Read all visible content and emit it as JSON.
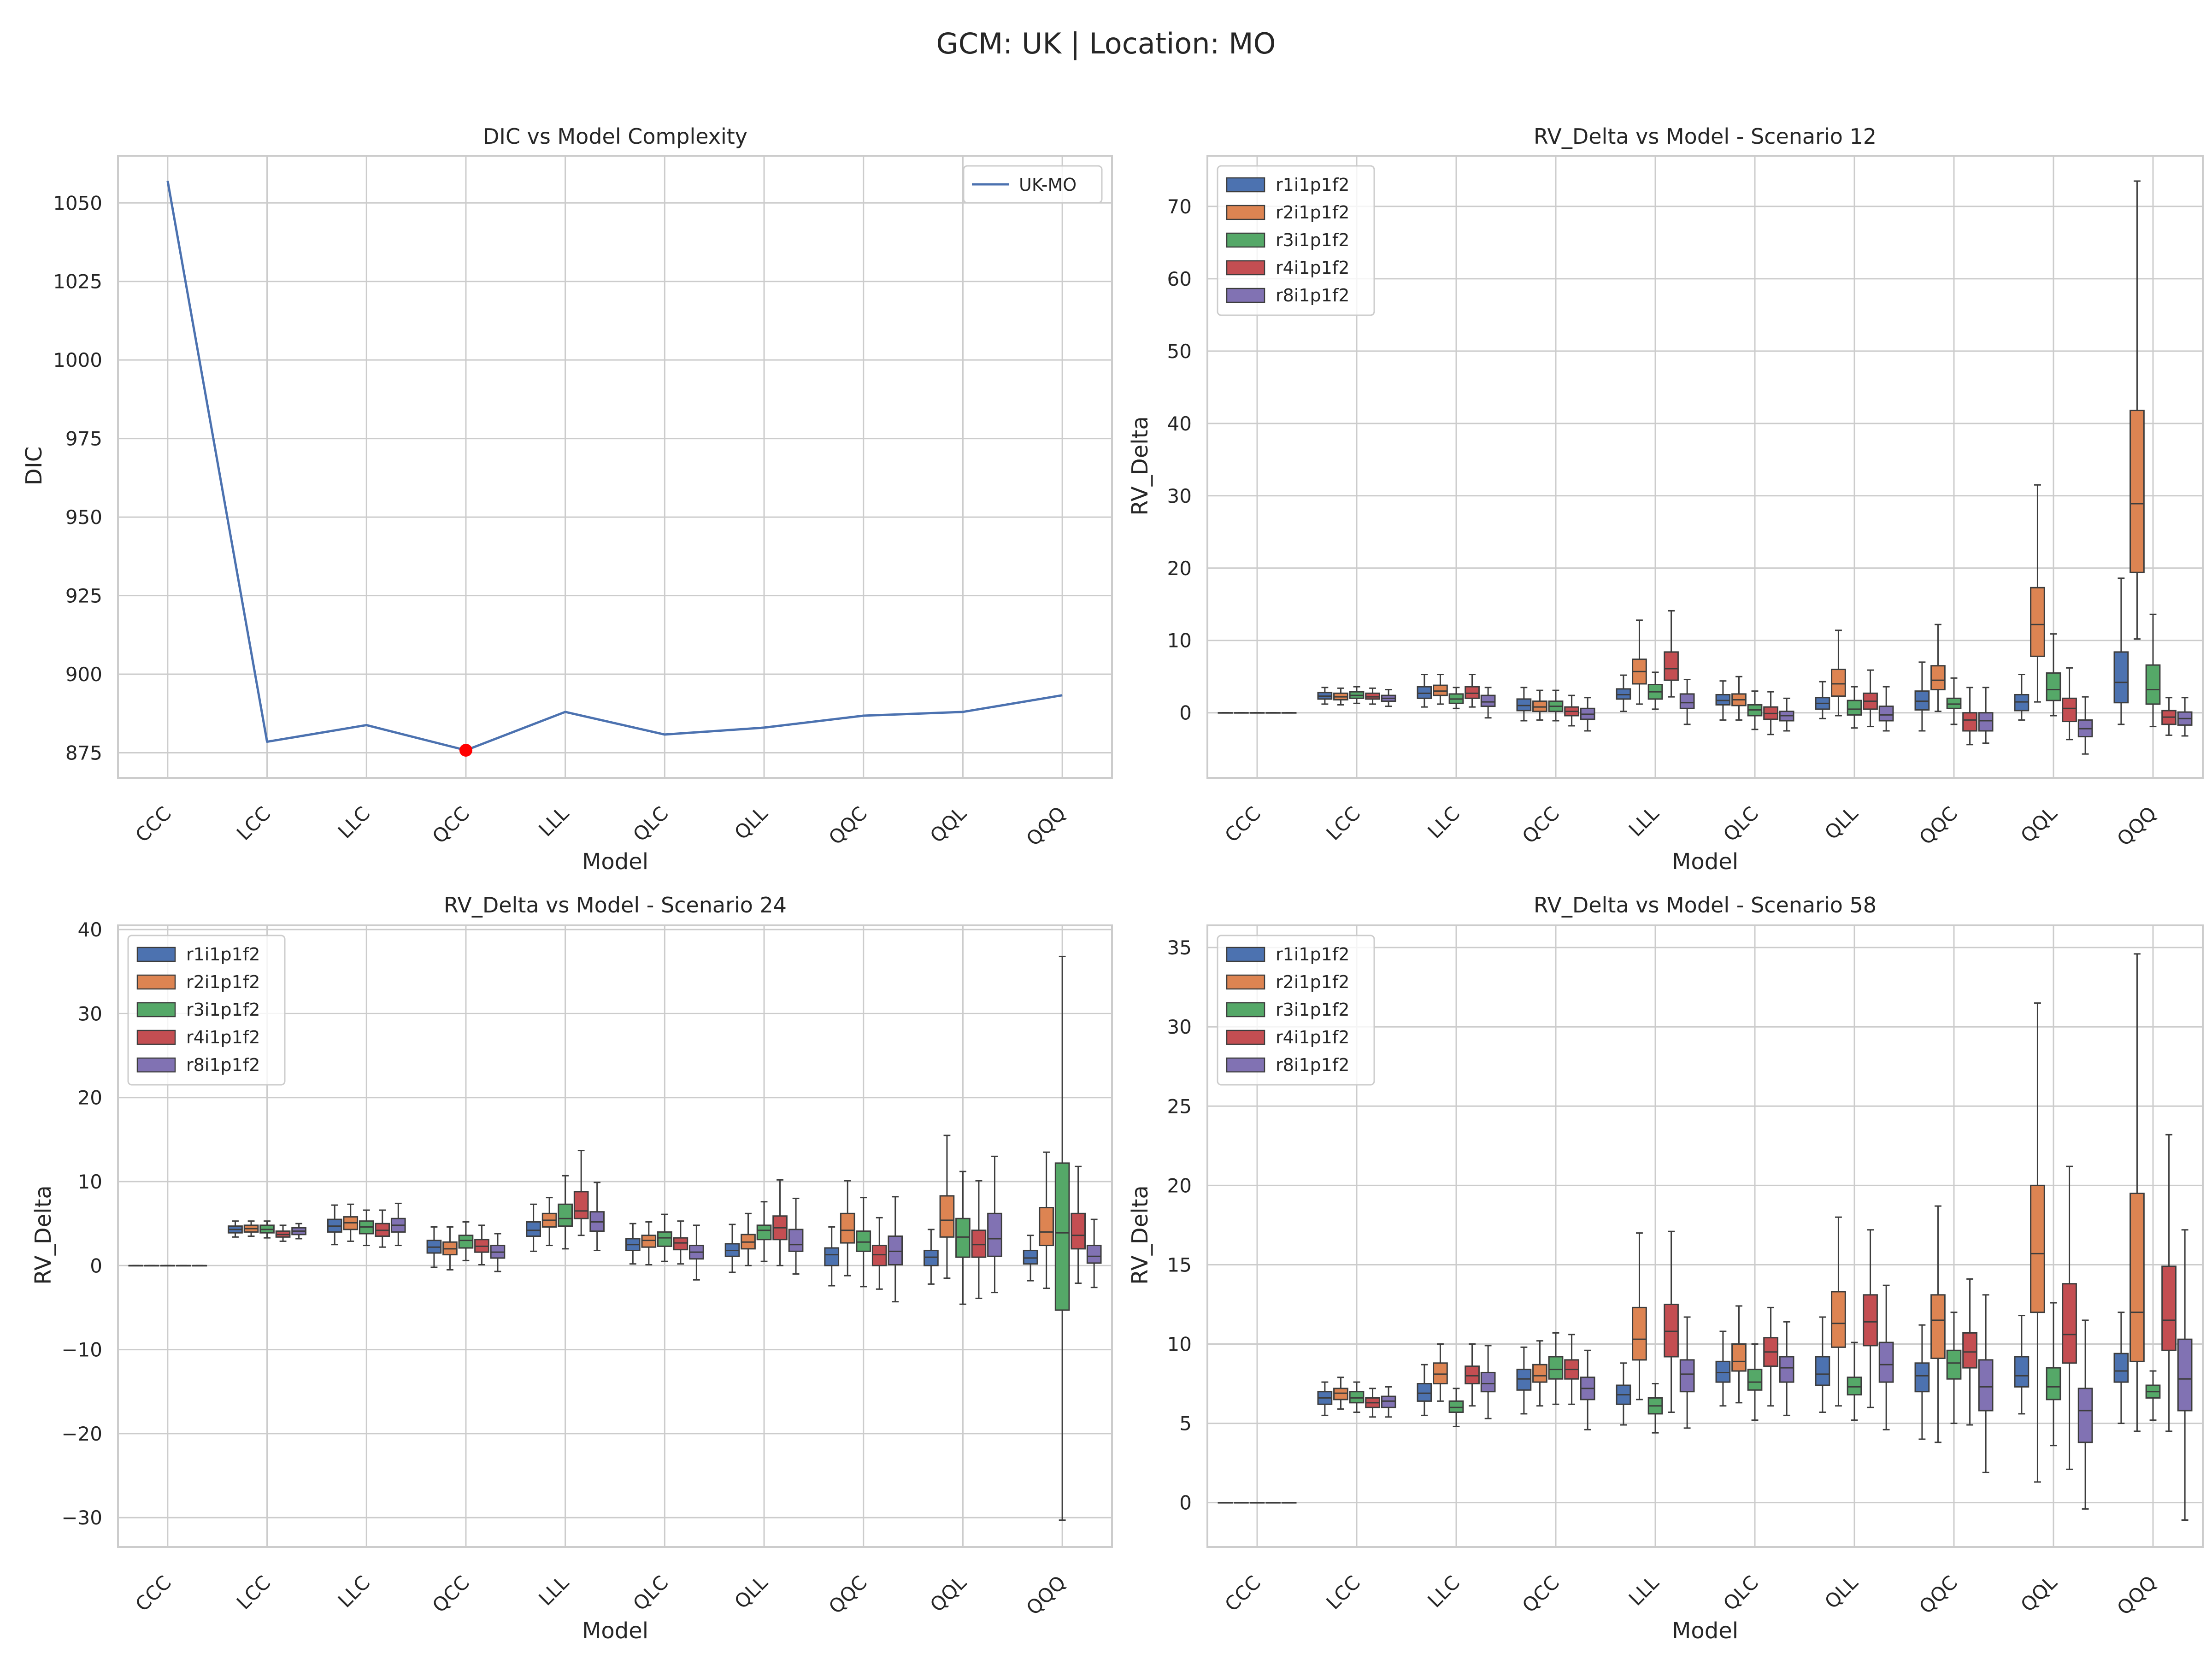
{
  "suptitle": "GCM: UK | Location: MO",
  "models": [
    "CCC",
    "LCC",
    "LLC",
    "QCC",
    "LLL",
    "QLC",
    "QLL",
    "QQC",
    "QQL",
    "QQQ"
  ],
  "members": [
    {
      "name": "r1i1p1f2",
      "color": "#4c72b0"
    },
    {
      "name": "r2i1p1f2",
      "color": "#dd8452"
    },
    {
      "name": "r3i1p1f2",
      "color": "#55a868"
    },
    {
      "name": "r4i1p1f2",
      "color": "#c44e52"
    },
    {
      "name": "r8i1p1f2",
      "color": "#8172b3"
    }
  ],
  "chart_data": [
    {
      "type": "line",
      "title": "DIC vs Model Complexity",
      "xlabel": "Model",
      "ylabel": "DIC",
      "ylim": [
        867,
        1065
      ],
      "yticks": [
        875,
        900,
        925,
        950,
        975,
        1000,
        1025,
        1050
      ],
      "legend": "top-right",
      "series": [
        {
          "name": "UK-MO",
          "color": "#4c72b0",
          "values": [
            1057,
            878.5,
            883.8,
            875.8,
            888,
            880.8,
            883,
            886.8,
            888,
            893.3
          ]
        }
      ],
      "highlight": {
        "category": "QCC",
        "value": 875.8,
        "color": "#ff0000"
      }
    },
    {
      "type": "box",
      "title": "RV_Delta vs Model - Scenario 12",
      "xlabel": "Model",
      "ylabel": "RV_Delta",
      "ylim": [
        -9,
        77
      ],
      "yticks": [
        0,
        10,
        20,
        30,
        40,
        50,
        60,
        70
      ],
      "legend": "top-left",
      "stats": [
        [
          [
            0,
            0,
            0,
            0,
            0
          ],
          [
            0,
            0,
            0,
            0,
            0
          ],
          [
            0,
            0,
            0,
            0,
            0
          ],
          [
            0,
            0,
            0,
            0,
            0
          ],
          [
            0,
            0,
            0,
            0,
            0
          ]
        ],
        [
          [
            1.2,
            1.9,
            2.3,
            2.8,
            3.5
          ],
          [
            1.1,
            1.8,
            2.2,
            2.7,
            3.4
          ],
          [
            1.3,
            2.0,
            2.4,
            2.9,
            3.6
          ],
          [
            1.2,
            1.9,
            2.2,
            2.7,
            3.4
          ],
          [
            0.9,
            1.6,
            2.0,
            2.4,
            3.2
          ]
        ],
        [
          [
            0.8,
            2.0,
            2.7,
            3.6,
            5.3
          ],
          [
            1.2,
            2.4,
            3.0,
            3.8,
            5.3
          ],
          [
            0.6,
            1.3,
            1.9,
            2.6,
            3.5
          ],
          [
            0.8,
            2.0,
            2.7,
            3.6,
            5.3
          ],
          [
            -0.7,
            0.9,
            1.5,
            2.4,
            3.5
          ]
        ],
        [
          [
            -1.1,
            0.3,
            1.0,
            1.9,
            3.5
          ],
          [
            -1.0,
            0.2,
            0.8,
            1.6,
            3.1
          ],
          [
            -1.1,
            0.2,
            0.9,
            1.6,
            3.1
          ],
          [
            -1.8,
            -0.4,
            0.2,
            0.8,
            2.4
          ],
          [
            -2.5,
            -0.9,
            -0.2,
            0.6,
            2.1
          ]
        ],
        [
          [
            0.2,
            1.9,
            2.5,
            3.3,
            5.2
          ],
          [
            1.2,
            4.0,
            5.7,
            7.4,
            12.8
          ],
          [
            0.5,
            1.9,
            2.9,
            3.9,
            5.6
          ],
          [
            2.2,
            4.5,
            6.1,
            8.4,
            14.1
          ],
          [
            -1.6,
            0.6,
            1.4,
            2.6,
            4.6
          ]
        ],
        [
          [
            -1.0,
            1.1,
            1.7,
            2.5,
            4.4
          ],
          [
            -1.0,
            1.0,
            1.8,
            2.6,
            5.0
          ],
          [
            -2.3,
            -0.4,
            0.4,
            1.1,
            3.0
          ],
          [
            -3.0,
            -0.9,
            -0.1,
            0.8,
            2.9
          ],
          [
            -2.5,
            -1.1,
            -0.4,
            0.2,
            2.0
          ]
        ],
        [
          [
            -0.8,
            0.5,
            1.3,
            2.1,
            4.3
          ],
          [
            -0.4,
            2.3,
            4.0,
            6.0,
            11.4
          ],
          [
            -2.1,
            -0.3,
            0.5,
            1.7,
            3.6
          ],
          [
            -1.9,
            0.5,
            1.6,
            2.7,
            5.9
          ],
          [
            -2.5,
            -1.1,
            -0.3,
            0.9,
            3.6
          ]
        ],
        [
          [
            -2.5,
            0.4,
            1.6,
            3.0,
            7.0
          ],
          [
            0.2,
            3.2,
            4.5,
            6.5,
            12.2
          ],
          [
            -1.6,
            0.6,
            1.2,
            2.0,
            4.8
          ],
          [
            -4.4,
            -2.5,
            -1.0,
            0.0,
            3.5
          ],
          [
            -4.2,
            -2.5,
            -1.1,
            0.0,
            3.5
          ]
        ],
        [
          [
            -1.0,
            0.3,
            1.5,
            2.5,
            5.3
          ],
          [
            1.5,
            7.8,
            12.2,
            17.3,
            31.5
          ],
          [
            -0.4,
            1.7,
            3.2,
            5.5,
            10.9
          ],
          [
            -3.7,
            -1.2,
            0.6,
            2.0,
            6.2
          ],
          [
            -5.7,
            -3.3,
            -2.2,
            -1.0,
            2.2
          ]
        ],
        [
          [
            -1.6,
            1.4,
            4.2,
            8.4,
            18.6
          ],
          [
            10.2,
            19.4,
            28.9,
            41.8,
            73.5
          ],
          [
            -1.9,
            1.2,
            3.2,
            6.6,
            13.6
          ],
          [
            -3.1,
            -1.6,
            -0.6,
            0.3,
            2.1
          ],
          [
            -3.2,
            -1.7,
            -0.8,
            0.1,
            2.1
          ]
        ]
      ]
    },
    {
      "type": "box",
      "title": "RV_Delta vs Model - Scenario 24",
      "xlabel": "Model",
      "ylabel": "RV_Delta",
      "ylim": [
        -33.5,
        40.5
      ],
      "yticks": [
        -30,
        -20,
        -10,
        0,
        10,
        20,
        30,
        40
      ],
      "legend": "top-left",
      "stats": [
        [
          [
            0,
            0,
            0,
            0,
            0
          ],
          [
            0,
            0,
            0,
            0,
            0
          ],
          [
            0,
            0,
            0,
            0,
            0
          ],
          [
            0,
            0,
            0,
            0,
            0
          ],
          [
            0,
            0,
            0,
            0,
            0
          ]
        ],
        [
          [
            3.4,
            3.9,
            4.3,
            4.7,
            5.3
          ],
          [
            3.5,
            4.0,
            4.4,
            4.8,
            5.3
          ],
          [
            3.3,
            3.9,
            4.3,
            4.8,
            5.3
          ],
          [
            2.9,
            3.4,
            3.7,
            4.1,
            4.8
          ],
          [
            3.2,
            3.7,
            4.1,
            4.5,
            5.0
          ]
        ],
        [
          [
            2.5,
            4.0,
            4.7,
            5.5,
            7.2
          ],
          [
            2.9,
            4.3,
            5.1,
            5.8,
            7.3
          ],
          [
            2.4,
            3.8,
            4.6,
            5.3,
            6.6
          ],
          [
            2.2,
            3.5,
            4.2,
            5.0,
            6.6
          ],
          [
            2.4,
            4.0,
            4.8,
            5.6,
            7.4
          ]
        ],
        [
          [
            -0.2,
            1.5,
            2.2,
            3.0,
            4.6
          ],
          [
            -0.5,
            1.3,
            2.0,
            2.8,
            4.6
          ],
          [
            0.6,
            2.1,
            3.0,
            3.6,
            5.2
          ],
          [
            0.1,
            1.6,
            2.3,
            3.1,
            4.8
          ],
          [
            -0.7,
            0.9,
            1.6,
            2.4,
            3.8
          ]
        ],
        [
          [
            1.7,
            3.5,
            4.2,
            5.2,
            7.3
          ],
          [
            2.4,
            4.6,
            5.4,
            6.2,
            8.1
          ],
          [
            2.0,
            4.7,
            5.6,
            7.3,
            10.7
          ],
          [
            3.6,
            5.6,
            6.5,
            8.8,
            13.7
          ],
          [
            1.8,
            4.1,
            5.2,
            6.4,
            9.9
          ]
        ],
        [
          [
            0.2,
            1.8,
            2.5,
            3.2,
            5.0
          ],
          [
            0.1,
            2.2,
            3.0,
            3.6,
            5.2
          ],
          [
            0.5,
            2.3,
            3.3,
            4.0,
            6.1
          ],
          [
            0.2,
            1.9,
            2.7,
            3.3,
            5.3
          ],
          [
            -1.7,
            0.8,
            1.6,
            2.4,
            4.8
          ]
        ],
        [
          [
            -0.8,
            1.1,
            1.8,
            2.6,
            4.9
          ],
          [
            0.0,
            2.0,
            2.8,
            3.7,
            6.2
          ],
          [
            0.5,
            3.1,
            4.2,
            4.8,
            7.6
          ],
          [
            0.0,
            3.1,
            4.5,
            5.9,
            10.2
          ],
          [
            -1.0,
            1.7,
            2.5,
            4.3,
            8.0
          ]
        ],
        [
          [
            -2.4,
            0.0,
            1.3,
            2.1,
            4.6
          ],
          [
            -1.2,
            2.7,
            4.2,
            6.2,
            10.1
          ],
          [
            -2.5,
            1.7,
            2.8,
            4.1,
            8.1
          ],
          [
            -2.8,
            0.0,
            1.3,
            2.4,
            5.7
          ],
          [
            -4.3,
            0.1,
            1.7,
            3.5,
            8.2
          ]
        ],
        [
          [
            -2.2,
            0.0,
            1.0,
            1.8,
            4.3
          ],
          [
            -1.5,
            3.4,
            5.4,
            8.3,
            15.5
          ],
          [
            -4.6,
            1.0,
            3.4,
            5.6,
            11.2
          ],
          [
            -3.9,
            1.0,
            2.5,
            4.2,
            10.1
          ],
          [
            -3.2,
            1.1,
            3.2,
            6.2,
            13.0
          ]
        ],
        [
          [
            -1.8,
            0.2,
            0.9,
            1.8,
            3.6
          ],
          [
            -2.7,
            2.4,
            4.0,
            6.9,
            13.5
          ],
          [
            -30.3,
            -5.3,
            3.9,
            12.2,
            36.8
          ],
          [
            -2.1,
            2.0,
            3.6,
            6.2,
            11.8
          ],
          [
            -2.6,
            0.3,
            1.1,
            2.4,
            5.5
          ]
        ]
      ]
    },
    {
      "type": "box",
      "title": "RV_Delta vs Model - Scenario 58",
      "xlabel": "Model",
      "ylabel": "RV_Delta",
      "ylim": [
        -2.8,
        36.4
      ],
      "yticks": [
        0,
        5,
        10,
        15,
        20,
        25,
        30,
        35
      ],
      "legend": "top-left",
      "stats": [
        [
          [
            0,
            0,
            0,
            0,
            0
          ],
          [
            0,
            0,
            0,
            0,
            0
          ],
          [
            0,
            0,
            0,
            0,
            0
          ],
          [
            0,
            0,
            0,
            0,
            0
          ],
          [
            0,
            0,
            0,
            0,
            0
          ]
        ],
        [
          [
            5.5,
            6.2,
            6.6,
            7.0,
            7.6
          ],
          [
            5.9,
            6.5,
            6.9,
            7.2,
            7.9
          ],
          [
            5.7,
            6.3,
            6.6,
            7.0,
            7.6
          ],
          [
            5.4,
            6.0,
            6.3,
            6.6,
            7.2
          ],
          [
            5.4,
            6.0,
            6.4,
            6.7,
            7.3
          ]
        ],
        [
          [
            5.5,
            6.4,
            6.9,
            7.5,
            8.7
          ],
          [
            6.4,
            7.5,
            8.1,
            8.8,
            10.0
          ],
          [
            4.8,
            5.7,
            6.0,
            6.4,
            7.2
          ],
          [
            6.1,
            7.5,
            8.0,
            8.6,
            10.0
          ],
          [
            5.3,
            7.0,
            7.5,
            8.2,
            9.9
          ]
        ],
        [
          [
            5.6,
            7.1,
            7.8,
            8.4,
            9.8
          ],
          [
            6.1,
            7.6,
            8.0,
            8.7,
            10.2
          ],
          [
            6.2,
            7.8,
            8.4,
            9.2,
            10.7
          ],
          [
            6.2,
            7.8,
            8.4,
            9.0,
            10.6
          ],
          [
            4.6,
            6.5,
            7.2,
            7.9,
            9.6
          ]
        ],
        [
          [
            4.9,
            6.2,
            6.8,
            7.4,
            8.8
          ],
          [
            6.5,
            9.0,
            10.3,
            12.3,
            17.0
          ],
          [
            4.4,
            5.6,
            6.1,
            6.6,
            7.5
          ],
          [
            5.7,
            9.2,
            10.8,
            12.5,
            17.1
          ],
          [
            4.7,
            7.0,
            8.1,
            9.0,
            11.7
          ]
        ],
        [
          [
            6.1,
            7.6,
            8.2,
            8.9,
            10.8
          ],
          [
            6.3,
            8.3,
            8.9,
            10.0,
            12.4
          ],
          [
            5.2,
            7.1,
            7.6,
            8.4,
            10.0
          ],
          [
            6.1,
            8.6,
            9.5,
            10.4,
            12.3
          ],
          [
            5.5,
            7.6,
            8.5,
            9.2,
            11.4
          ]
        ],
        [
          [
            5.7,
            7.4,
            8.1,
            9.2,
            11.7
          ],
          [
            6.1,
            9.8,
            11.3,
            13.3,
            18.0
          ],
          [
            5.2,
            6.8,
            7.3,
            7.9,
            10.1
          ],
          [
            6.0,
            9.9,
            11.4,
            13.1,
            17.2
          ],
          [
            4.6,
            7.6,
            8.7,
            10.1,
            13.7
          ]
        ],
        [
          [
            4.0,
            7.0,
            8.0,
            8.8,
            11.2
          ],
          [
            3.8,
            9.1,
            11.5,
            13.1,
            18.7
          ],
          [
            5.0,
            7.8,
            8.8,
            9.6,
            12.0
          ],
          [
            4.9,
            8.5,
            9.5,
            10.7,
            14.1
          ],
          [
            1.9,
            5.8,
            7.3,
            9.0,
            13.1
          ]
        ],
        [
          [
            5.6,
            7.3,
            8.0,
            9.2,
            11.8
          ],
          [
            1.3,
            12.0,
            15.7,
            20.0,
            31.5
          ],
          [
            3.6,
            6.5,
            7.3,
            8.5,
            12.6
          ],
          [
            2.1,
            8.8,
            10.6,
            13.8,
            21.2
          ],
          [
            -0.4,
            3.8,
            5.8,
            7.2,
            11.5
          ]
        ],
        [
          [
            5.0,
            7.6,
            8.3,
            9.4,
            12.0
          ],
          [
            4.5,
            8.9,
            12.0,
            19.5,
            34.6
          ],
          [
            5.2,
            6.6,
            7.0,
            7.4,
            8.3
          ],
          [
            4.5,
            9.6,
            11.5,
            14.9,
            23.2
          ],
          [
            -1.1,
            5.8,
            7.8,
            10.3,
            17.2
          ]
        ]
      ]
    }
  ]
}
